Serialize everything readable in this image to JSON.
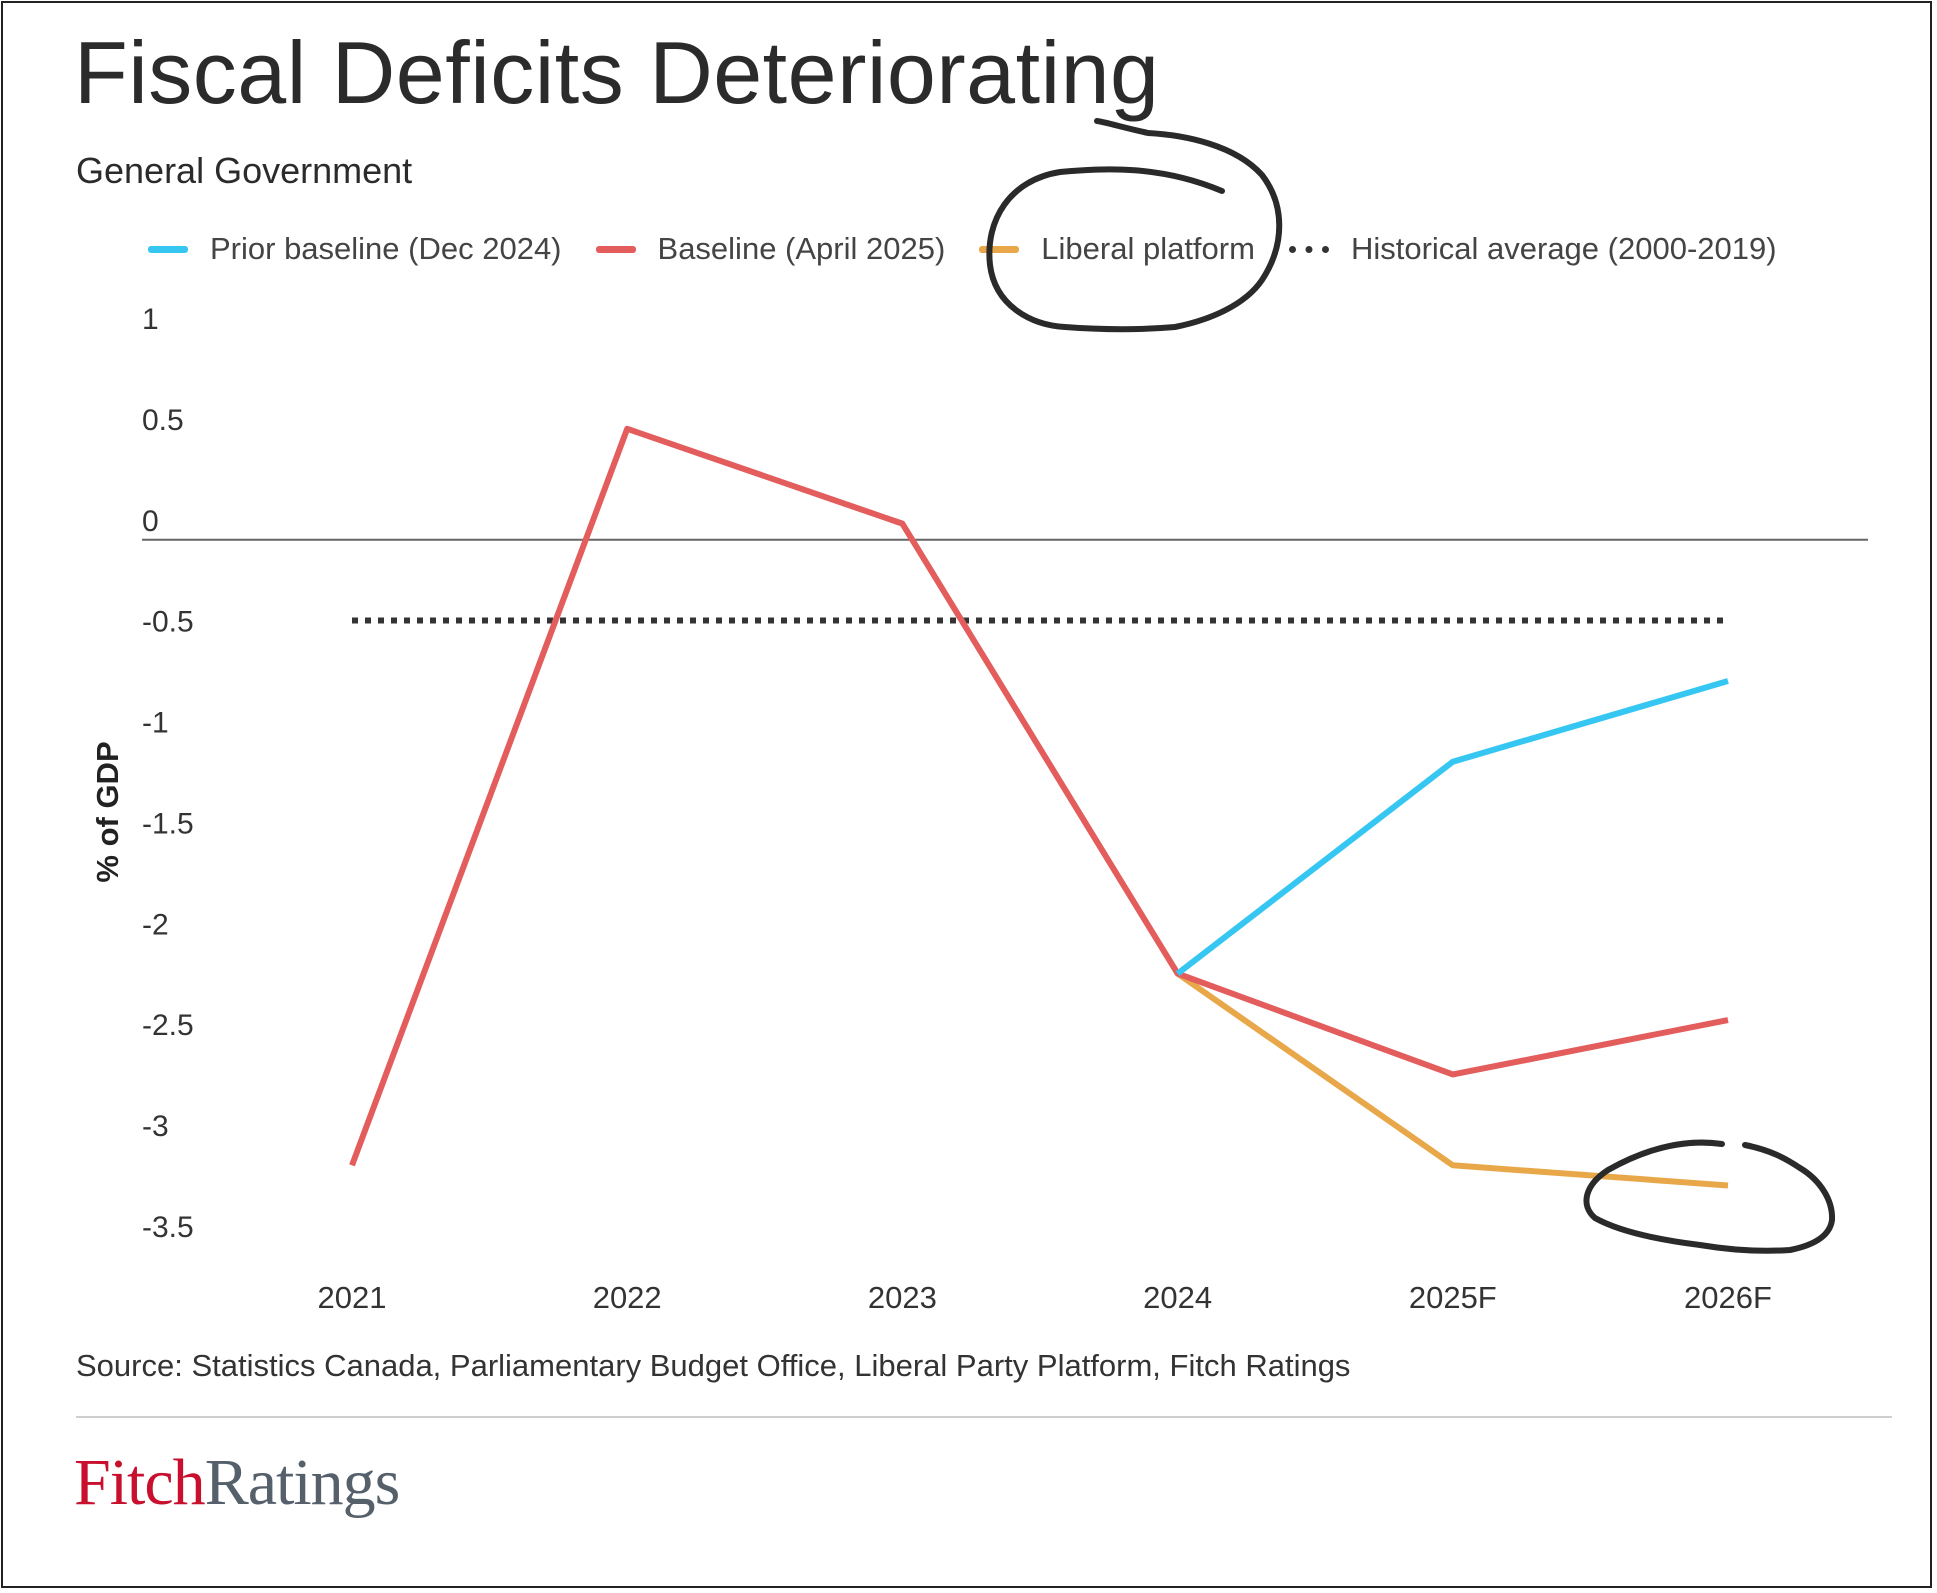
{
  "title": "Fiscal Deficits Deteriorating",
  "subtitle": "General Government",
  "source": "Source: Statistics Canada, Parliamentary Budget Office, Liberal Party Platform, Fitch Ratings",
  "logo": {
    "part1": "Fitch",
    "part2": "Ratings"
  },
  "colors": {
    "prior": "#35c7f2",
    "baseline": "#e35d5d",
    "liberal": "#e8a84a",
    "historical": "#333333",
    "annotation": "#2a2a2a"
  },
  "legend": [
    {
      "label": "Prior baseline (Dec 2024)",
      "color": "#35c7f2",
      "style": "solid"
    },
    {
      "label": "Baseline (April 2025)",
      "color": "#e35d5d",
      "style": "solid"
    },
    {
      "label": "Liberal platform",
      "color": "#e8a84a",
      "style": "solid"
    },
    {
      "label": "Historical average (2000-2019)",
      "color": "#333333",
      "style": "dotted"
    }
  ],
  "chart_data": {
    "type": "line",
    "ylabel": "% of GDP",
    "ylim": [
      -3.5,
      1
    ],
    "yticks": [
      "1",
      "0.5",
      "0",
      "-0.5",
      "-1",
      "-1.5",
      "-2",
      "-2.5",
      "-3",
      "-3.5"
    ],
    "categories": [
      "2021",
      "2022",
      "2023",
      "2024",
      "2025F",
      "2026F"
    ],
    "series": [
      {
        "name": "Baseline (April 2025)",
        "values": [
          -3.1,
          0.55,
          0.08,
          -2.15,
          -2.65,
          -2.38
        ]
      },
      {
        "name": "Prior baseline (Dec 2024)",
        "values": [
          null,
          null,
          null,
          -2.15,
          -1.1,
          -0.7
        ]
      },
      {
        "name": "Liberal platform",
        "values": [
          null,
          null,
          null,
          -2.15,
          -3.1,
          -3.2
        ]
      },
      {
        "name": "Historical average (2000-2019)",
        "values": [
          -0.4,
          -0.4,
          -0.4,
          -0.4,
          -0.4,
          -0.4
        ]
      }
    ],
    "grid": false,
    "legend_position": "top",
    "annotations": [
      "hand-drawn circle around 'Liberal platform' legend entry",
      "hand-drawn circle around 2026F Liberal platform value"
    ]
  }
}
